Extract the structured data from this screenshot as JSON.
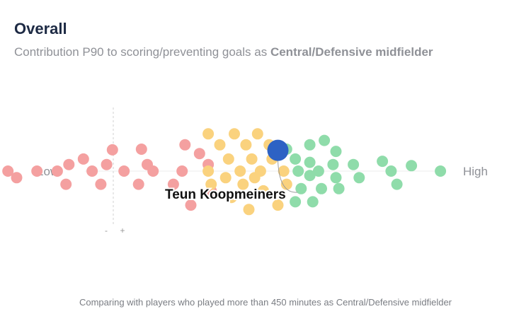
{
  "header": {
    "title": "Overall",
    "subtitle_prefix": "Contribution P90 to scoring/preventing goals as ",
    "subtitle_strong": "Central/Defensive midfielder"
  },
  "footnote": "Comparing with players who played more than 450 minutes as Central/Defensive midfielder",
  "chart_data": {
    "type": "scatter",
    "title": "Overall",
    "scale_labels": {
      "low": "Low",
      "high": "High"
    },
    "reference_line": {
      "minus_label": "-",
      "plus_label": "+"
    },
    "highlight": {
      "name": "Teun Koopmeiners",
      "color": "#2d62c4"
    },
    "group_colors": {
      "low": "#f4a0a0",
      "mid": "#fad27e",
      "high": "#8fdcaa"
    },
    "players": [
      {
        "x": -1.0,
        "s": 0.0,
        "g": "low"
      },
      {
        "x": -0.88,
        "s": 0.0,
        "g": "low"
      },
      {
        "x": -0.85,
        "s": -0.3,
        "g": "low"
      },
      {
        "x": -0.78,
        "s": 0.0,
        "g": "low"
      },
      {
        "x": -0.71,
        "s": 0.0,
        "g": "low"
      },
      {
        "x": -0.68,
        "s": -0.6,
        "g": "low"
      },
      {
        "x": -0.67,
        "s": 0.3,
        "g": "low"
      },
      {
        "x": -0.62,
        "s": 0.55,
        "g": "low"
      },
      {
        "x": -0.59,
        "s": 0.0,
        "g": "low"
      },
      {
        "x": -0.56,
        "s": -0.6,
        "g": "low"
      },
      {
        "x": -0.54,
        "s": 0.3,
        "g": "low"
      },
      {
        "x": -0.52,
        "s": 0.97,
        "g": "low"
      },
      {
        "x": -0.48,
        "s": 0.0,
        "g": "low"
      },
      {
        "x": -0.43,
        "s": -0.6,
        "g": "low"
      },
      {
        "x": -0.42,
        "s": 1.0,
        "g": "low"
      },
      {
        "x": -0.4,
        "s": 0.3,
        "g": "low"
      },
      {
        "x": -0.38,
        "s": 0.0,
        "g": "low"
      },
      {
        "x": -0.31,
        "s": -0.6,
        "g": "low"
      },
      {
        "x": -0.28,
        "s": 0.0,
        "g": "low"
      },
      {
        "x": -0.27,
        "s": 1.2,
        "g": "low"
      },
      {
        "x": -0.25,
        "s": -1.55,
        "g": "low"
      },
      {
        "x": -0.22,
        "s": 0.8,
        "g": "low"
      },
      {
        "x": -0.19,
        "s": 0.3,
        "g": "low"
      },
      {
        "x": -0.18,
        "s": -0.9,
        "g": "low"
      },
      {
        "x": -0.18,
        "s": -0.6,
        "g": "mid"
      },
      {
        "x": -0.19,
        "s": 1.7,
        "g": "mid"
      },
      {
        "x": -0.19,
        "s": 0.0,
        "g": "mid"
      },
      {
        "x": -0.15,
        "s": 1.2,
        "g": "mid"
      },
      {
        "x": -0.13,
        "s": -0.3,
        "g": "mid"
      },
      {
        "x": -0.12,
        "s": 0.55,
        "g": "mid"
      },
      {
        "x": -0.11,
        "s": -1.2,
        "g": "mid"
      },
      {
        "x": -0.1,
        "s": 1.7,
        "g": "mid"
      },
      {
        "x": -0.08,
        "s": 0.0,
        "g": "mid"
      },
      {
        "x": -0.07,
        "s": -0.6,
        "g": "mid"
      },
      {
        "x": -0.06,
        "s": 1.2,
        "g": "mid"
      },
      {
        "x": -0.05,
        "s": -1.75,
        "g": "mid"
      },
      {
        "x": -0.04,
        "s": 0.55,
        "g": "mid"
      },
      {
        "x": -0.03,
        "s": -0.3,
        "g": "mid"
      },
      {
        "x": -0.02,
        "s": 1.7,
        "g": "mid"
      },
      {
        "x": -0.01,
        "s": 0.0,
        "g": "mid"
      },
      {
        "x": 0.0,
        "s": -0.9,
        "g": "mid"
      },
      {
        "x": 0.02,
        "s": 1.2,
        "g": "mid"
      },
      {
        "x": 0.03,
        "s": 0.55,
        "g": "mid"
      },
      {
        "x": 0.05,
        "s": -1.55,
        "g": "mid"
      },
      {
        "x": 0.07,
        "s": 0.0,
        "g": "mid"
      },
      {
        "x": 0.08,
        "s": -0.6,
        "g": "mid"
      },
      {
        "x": 0.08,
        "s": 1.0,
        "g": "high"
      },
      {
        "x": 0.11,
        "s": 0.55,
        "g": "high"
      },
      {
        "x": 0.11,
        "s": -1.4,
        "g": "high"
      },
      {
        "x": 0.12,
        "s": 0.0,
        "g": "high"
      },
      {
        "x": 0.13,
        "s": -0.8,
        "g": "high"
      },
      {
        "x": 0.16,
        "s": 1.2,
        "g": "high"
      },
      {
        "x": 0.16,
        "s": -0.2,
        "g": "high"
      },
      {
        "x": 0.16,
        "s": 0.4,
        "g": "high"
      },
      {
        "x": 0.17,
        "s": -1.4,
        "g": "high"
      },
      {
        "x": 0.19,
        "s": 0.0,
        "g": "high"
      },
      {
        "x": 0.2,
        "s": -0.8,
        "g": "high"
      },
      {
        "x": 0.21,
        "s": 1.4,
        "g": "high"
      },
      {
        "x": 0.24,
        "s": 0.3,
        "g": "high"
      },
      {
        "x": 0.25,
        "s": -0.3,
        "g": "high"
      },
      {
        "x": 0.25,
        "s": 0.9,
        "g": "high"
      },
      {
        "x": 0.26,
        "s": -0.8,
        "g": "high"
      },
      {
        "x": 0.31,
        "s": 0.3,
        "g": "high"
      },
      {
        "x": 0.33,
        "s": -0.3,
        "g": "high"
      },
      {
        "x": 0.41,
        "s": 0.45,
        "g": "high"
      },
      {
        "x": 0.44,
        "s": 0.0,
        "g": "high"
      },
      {
        "x": 0.46,
        "s": -0.6,
        "g": "high"
      },
      {
        "x": 0.51,
        "s": 0.25,
        "g": "high"
      },
      {
        "x": 0.61,
        "s": 0.0,
        "g": "high"
      }
    ],
    "highlight_point": {
      "x": 0.05,
      "s": 0.95
    }
  }
}
